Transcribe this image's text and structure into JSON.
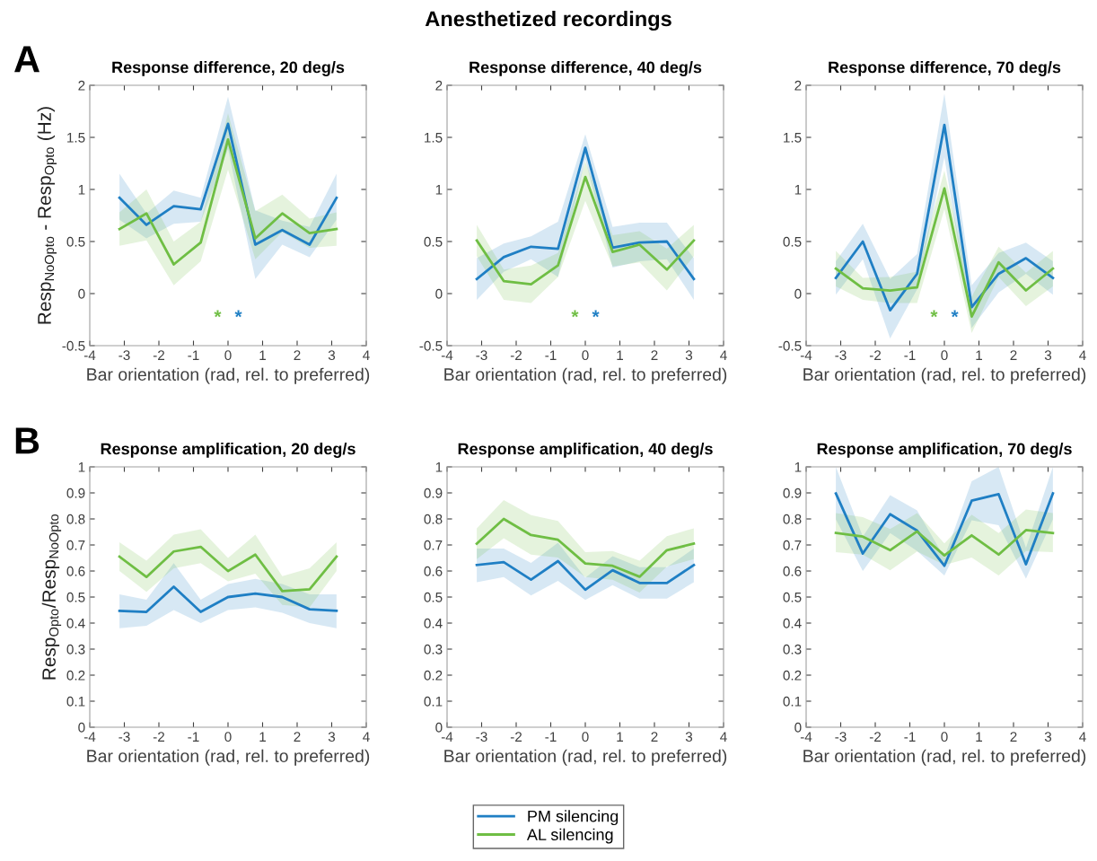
{
  "chart_data": [
    {
      "type": "line",
      "title": "Response difference, 20 deg/s",
      "xlabel": "Bar orientation (rad, rel. to preferred)",
      "ylabel": "Resp$_{NoOpto}$ - Resp$_{Opto}$ (Hz)",
      "x": [
        -3.14,
        -2.36,
        -1.57,
        -0.79,
        0,
        0.79,
        1.57,
        2.36,
        3.14
      ],
      "xlim": [
        -4,
        4
      ],
      "xticks": [
        -4,
        -3,
        -2,
        -1,
        0,
        1,
        2,
        3,
        4
      ],
      "ylim": [
        -0.5,
        2
      ],
      "yticks": [
        -0.5,
        0,
        0.5,
        1,
        1.5,
        2
      ],
      "annotations": [
        "Anesthetized recordings",
        "A",
        "*",
        "*"
      ],
      "legend": "bottom",
      "series": [
        {
          "name": "PM silencing",
          "color": "#1f7fc4",
          "values": [
            0.92,
            0.66,
            0.84,
            0.81,
            1.63,
            0.47,
            0.61,
            0.47,
            0.92
          ],
          "lower": [
            0.71,
            0.53,
            0.67,
            0.69,
            1.39,
            0.14,
            0.47,
            0.35,
            0.71
          ],
          "upper": [
            1.15,
            0.77,
            0.99,
            0.92,
            1.89,
            0.8,
            0.7,
            0.64,
            1.15
          ]
        },
        {
          "name": "AL silencing",
          "color": "#6fbe44",
          "values": [
            0.62,
            0.77,
            0.28,
            0.49,
            1.48,
            0.53,
            0.77,
            0.58,
            0.62
          ],
          "lower": [
            0.46,
            0.51,
            0.08,
            0.31,
            1.19,
            0.33,
            0.59,
            0.44,
            0.46
          ],
          "upper": [
            0.78,
            1.0,
            0.5,
            0.69,
            1.73,
            0.79,
            0.95,
            0.72,
            0.78
          ]
        }
      ]
    },
    {
      "type": "line",
      "title": "Response difference, 40 deg/s",
      "xlabel": "Bar orientation (rad, rel. to preferred)",
      "x": [
        -3.14,
        -2.36,
        -1.57,
        -0.79,
        0,
        0.79,
        1.57,
        2.36,
        3.14
      ],
      "xlim": [
        -4,
        4
      ],
      "xticks": [
        -4,
        -3,
        -2,
        -1,
        0,
        1,
        2,
        3,
        4
      ],
      "ylim": [
        -0.5,
        2
      ],
      "yticks": [
        -0.5,
        0,
        0.5,
        1,
        1.5,
        2
      ],
      "annotations": [
        "*",
        "*"
      ],
      "series": [
        {
          "color": "#1f7fc4",
          "values": [
            0.14,
            0.35,
            0.45,
            0.43,
            1.4,
            0.44,
            0.49,
            0.5,
            0.14
          ],
          "lower": [
            -0.06,
            0.21,
            0.33,
            0.16,
            1.29,
            0.25,
            0.31,
            0.33,
            -0.06
          ],
          "upper": [
            0.34,
            0.48,
            0.55,
            0.69,
            1.53,
            0.64,
            0.68,
            0.68,
            0.34
          ]
        },
        {
          "color": "#6fbe44",
          "values": [
            0.51,
            0.12,
            0.09,
            0.27,
            1.12,
            0.4,
            0.47,
            0.23,
            0.51
          ],
          "lower": [
            0.36,
            -0.06,
            -0.09,
            0.16,
            0.89,
            0.26,
            0.3,
            0.03,
            0.36
          ],
          "upper": [
            0.66,
            0.23,
            0.27,
            0.39,
            1.27,
            0.56,
            0.6,
            0.43,
            0.66
          ]
        }
      ]
    },
    {
      "type": "line",
      "title": "Response difference, 70 deg/s",
      "xlabel": "Bar orientation (rad, rel. to preferred)",
      "x": [
        -3.14,
        -2.36,
        -1.57,
        -0.79,
        0,
        0.79,
        1.57,
        2.36,
        3.14
      ],
      "xlim": [
        -4,
        4
      ],
      "xticks": [
        -4,
        -3,
        -2,
        -1,
        0,
        1,
        2,
        3,
        4
      ],
      "ylim": [
        -0.5,
        2
      ],
      "yticks": [
        -0.5,
        0,
        0.5,
        1,
        1.5,
        2
      ],
      "annotations": [
        "*",
        "*"
      ],
      "series": [
        {
          "color": "#1f7fc4",
          "values": [
            0.15,
            0.5,
            -0.16,
            0.19,
            1.62,
            -0.13,
            0.19,
            0.34,
            0.15
          ],
          "lower": [
            -0.01,
            0.33,
            -0.43,
            0.04,
            1.31,
            -0.33,
            0.01,
            0.19,
            -0.01
          ],
          "upper": [
            0.31,
            0.67,
            0.14,
            0.38,
            1.92,
            0.08,
            0.39,
            0.49,
            0.31
          ]
        },
        {
          "color": "#6fbe44",
          "values": [
            0.24,
            0.05,
            0.03,
            0.06,
            1.01,
            -0.22,
            0.3,
            0.03,
            0.24
          ],
          "lower": [
            0.07,
            -0.06,
            -0.09,
            -0.09,
            0.81,
            -0.38,
            0.16,
            -0.12,
            0.07
          ],
          "upper": [
            0.41,
            0.15,
            0.16,
            0.21,
            1.18,
            -0.03,
            0.45,
            0.2,
            0.41
          ]
        }
      ]
    },
    {
      "type": "line",
      "title": "Response amplification, 20 deg/s",
      "xlabel": "Bar orientation (rad, rel. to preferred)",
      "ylabel": "Resp$_{Opto}$/Resp$_{NoOpto}$",
      "x": [
        -3.14,
        -2.36,
        -1.57,
        -0.79,
        0,
        0.79,
        1.57,
        2.36,
        3.14
      ],
      "xlim": [
        -4,
        4
      ],
      "xticks": [
        -4,
        -3,
        -2,
        -1,
        0,
        1,
        2,
        3,
        4
      ],
      "ylim": [
        0,
        1
      ],
      "yticks": [
        0,
        0.1,
        0.2,
        0.3,
        0.4,
        0.5,
        0.6,
        0.7,
        0.8,
        0.9,
        1
      ],
      "annotations": [
        "B"
      ],
      "series": [
        {
          "color": "#1f7fc4",
          "values": [
            0.447,
            0.443,
            0.54,
            0.443,
            0.5,
            0.513,
            0.5,
            0.453,
            0.447
          ],
          "lower": [
            0.38,
            0.39,
            0.45,
            0.4,
            0.45,
            0.46,
            0.44,
            0.4,
            0.38
          ],
          "upper": [
            0.51,
            0.49,
            0.63,
            0.49,
            0.55,
            0.57,
            0.55,
            0.51,
            0.51
          ]
        },
        {
          "color": "#6fbe44",
          "values": [
            0.655,
            0.577,
            0.675,
            0.693,
            0.6,
            0.663,
            0.523,
            0.53,
            0.655
          ],
          "lower": [
            0.6,
            0.52,
            0.61,
            0.63,
            0.56,
            0.59,
            0.47,
            0.46,
            0.6
          ],
          "upper": [
            0.71,
            0.64,
            0.74,
            0.76,
            0.65,
            0.74,
            0.58,
            0.61,
            0.71
          ]
        }
      ]
    },
    {
      "type": "line",
      "title": "Response amplification, 40 deg/s",
      "xlabel": "Bar orientation (rad, rel. to preferred)",
      "x": [
        -3.14,
        -2.36,
        -1.57,
        -0.79,
        0,
        0.79,
        1.57,
        2.36,
        3.14
      ],
      "xlim": [
        -4,
        4
      ],
      "xticks": [
        -4,
        -3,
        -2,
        -1,
        0,
        1,
        2,
        3,
        4
      ],
      "ylim": [
        0,
        1
      ],
      "yticks": [
        0,
        0.1,
        0.2,
        0.3,
        0.4,
        0.5,
        0.6,
        0.7,
        0.8,
        0.9,
        1
      ],
      "series": [
        {
          "color": "#1f7fc4",
          "values": [
            0.623,
            0.634,
            0.567,
            0.638,
            0.528,
            0.603,
            0.554,
            0.554,
            0.623
          ],
          "lower": [
            0.557,
            0.577,
            0.506,
            0.562,
            0.489,
            0.546,
            0.494,
            0.494,
            0.557
          ],
          "upper": [
            0.686,
            0.686,
            0.631,
            0.709,
            0.574,
            0.657,
            0.615,
            0.615,
            0.686
          ]
        },
        {
          "color": "#6fbe44",
          "values": [
            0.705,
            0.8,
            0.738,
            0.72,
            0.629,
            0.62,
            0.578,
            0.68,
            0.705
          ],
          "lower": [
            0.646,
            0.726,
            0.663,
            0.652,
            0.577,
            0.566,
            0.517,
            0.617,
            0.646
          ],
          "upper": [
            0.764,
            0.872,
            0.815,
            0.792,
            0.672,
            0.677,
            0.64,
            0.734,
            0.764
          ]
        }
      ]
    },
    {
      "type": "line",
      "title": "Response amplification, 70 deg/s",
      "xlabel": "Bar orientation (rad, rel. to preferred)",
      "x": [
        -3.14,
        -2.36,
        -1.57,
        -0.79,
        0,
        0.79,
        1.57,
        2.36,
        3.14
      ],
      "xlim": [
        -4,
        4
      ],
      "xticks": [
        -4,
        -3,
        -2,
        -1,
        0,
        1,
        2,
        3,
        4
      ],
      "ylim": [
        0,
        1
      ],
      "yticks": [
        0,
        0.1,
        0.2,
        0.3,
        0.4,
        0.5,
        0.6,
        0.7,
        0.8,
        0.9,
        1
      ],
      "series": [
        {
          "color": "#1f7fc4",
          "values": [
            0.898,
            0.667,
            0.818,
            0.755,
            0.62,
            0.87,
            0.895,
            0.626,
            0.898
          ],
          "lower": [
            0.798,
            0.6,
            0.746,
            0.677,
            0.583,
            0.795,
            0.776,
            0.571,
            0.798
          ],
          "upper": [
            1.0,
            0.732,
            0.891,
            0.833,
            0.652,
            0.945,
            1.0,
            0.689,
            1.0
          ]
        },
        {
          "color": "#6fbe44",
          "values": [
            0.746,
            0.732,
            0.68,
            0.752,
            0.66,
            0.737,
            0.663,
            0.757,
            0.746
          ],
          "lower": [
            0.672,
            0.663,
            0.603,
            0.675,
            0.623,
            0.652,
            0.583,
            0.677,
            0.672
          ],
          "upper": [
            0.822,
            0.807,
            0.761,
            0.822,
            0.706,
            0.816,
            0.746,
            0.836,
            0.822
          ]
        }
      ]
    }
  ]
}
